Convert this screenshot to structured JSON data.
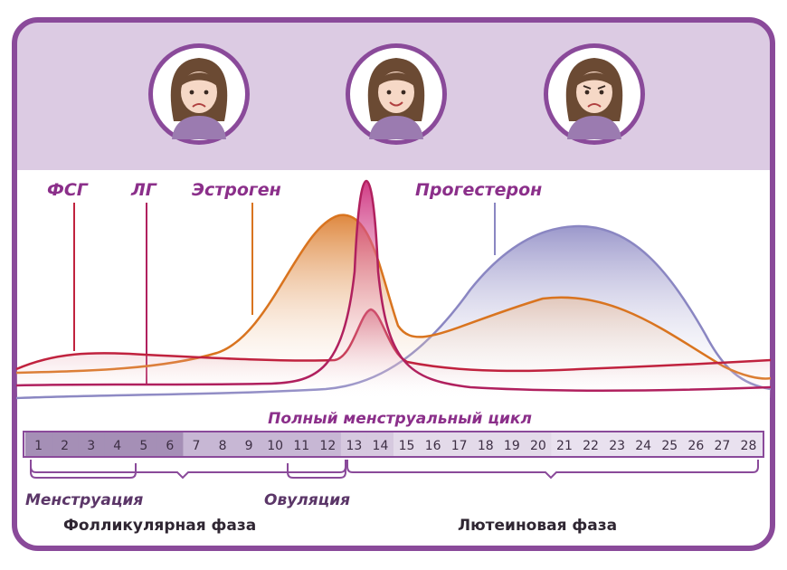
{
  "hormone_labels": {
    "fsh": "ФСГ",
    "lh": "ЛГ",
    "estrogen": "Эстроген",
    "progesterone": "Прогестерон"
  },
  "cycle_title": "Полный менструальный цикл",
  "days": [
    "1",
    "2",
    "3",
    "4",
    "5",
    "6",
    "7",
    "8",
    "9",
    "10",
    "11",
    "12",
    "13",
    "14",
    "15",
    "16",
    "17",
    "18",
    "19",
    "20",
    "21",
    "22",
    "23",
    "24",
    "25",
    "26",
    "27",
    "28"
  ],
  "phases": {
    "menstruation": "Менструация",
    "ovulation": "Овуляция",
    "follicular": "Фолликулярная фаза",
    "luteal": "Лютеиновая фаза"
  },
  "faces": [
    {
      "mood": "sad-face"
    },
    {
      "mood": "happy-face"
    },
    {
      "mood": "angry-face"
    }
  ],
  "colors": {
    "frame": "#8a4a9a",
    "header_bg": "#dccbe3",
    "fsh": "#c0223e",
    "lh": "#b0205e",
    "estrogen": "#d9741f",
    "progesterone": "#8a86c2",
    "label_purple": "#8b2f8a",
    "day_dark": "#a58fb6",
    "day_mid": "#c7b7d4",
    "day_light": "#e9e1ef"
  }
}
